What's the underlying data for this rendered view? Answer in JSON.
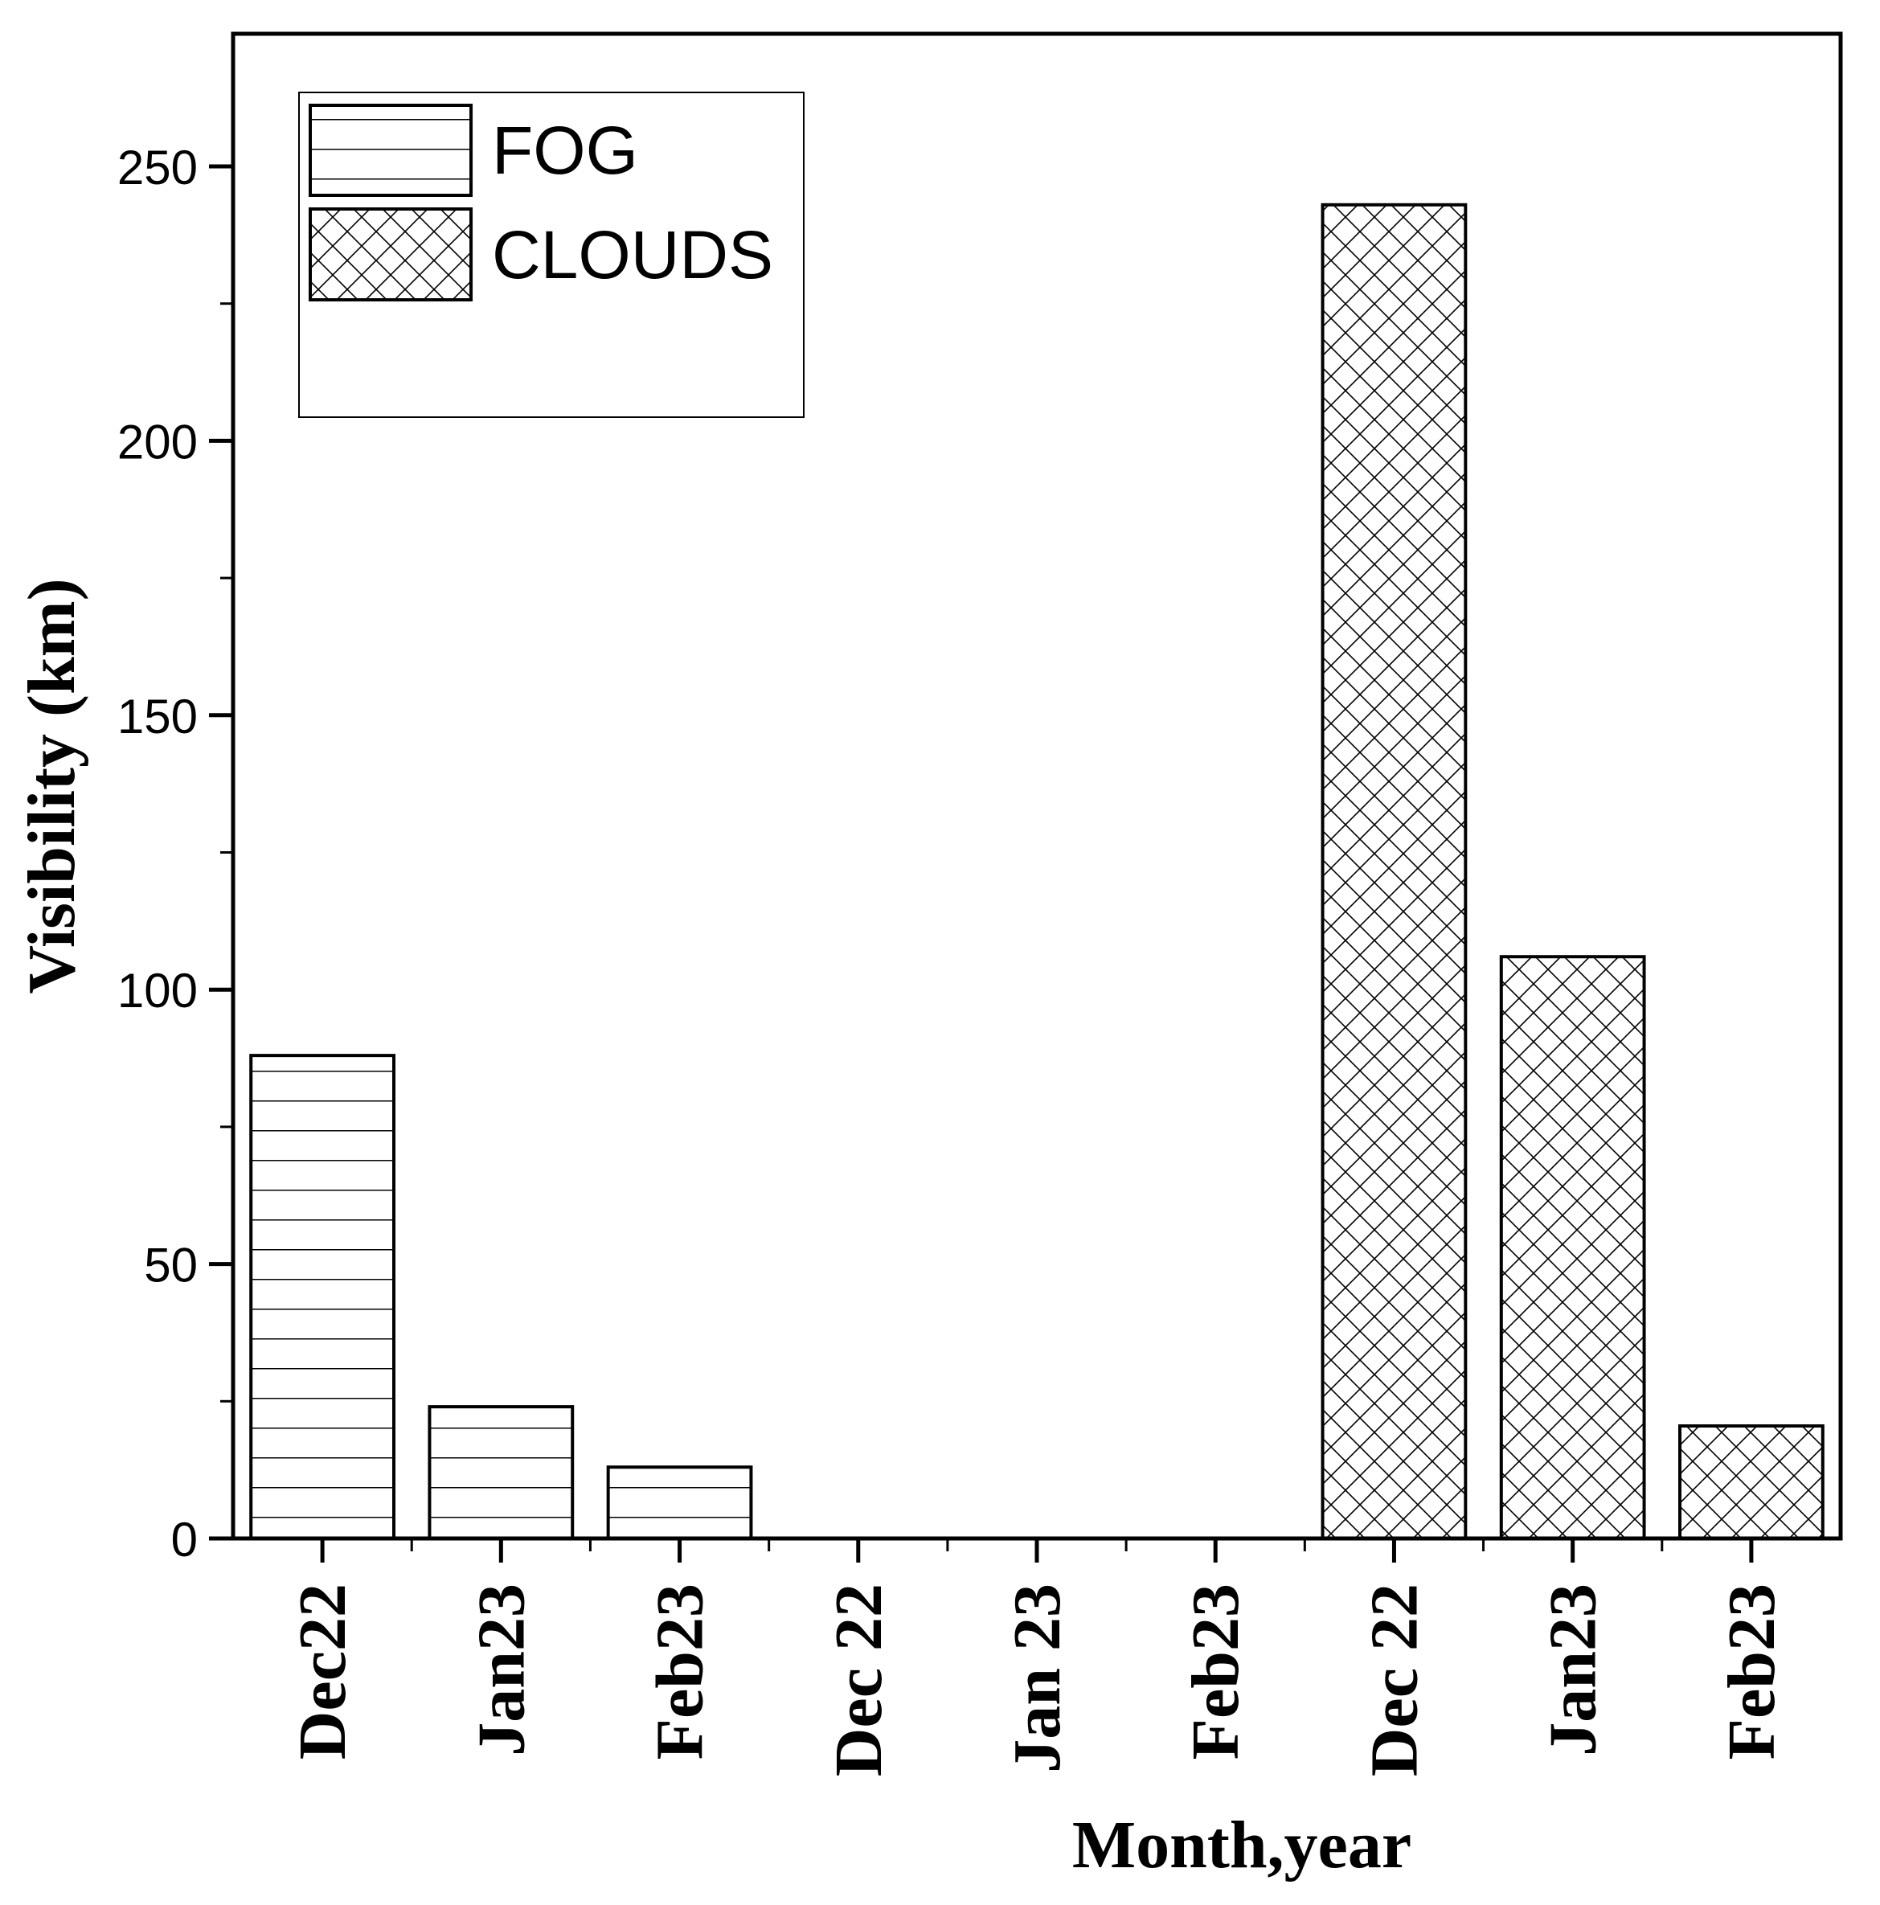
{
  "chart_data": {
    "type": "bar",
    "categories": [
      "Dec22",
      "Jan23",
      "Feb23",
      "Dec 22",
      "Jan 23",
      "Feb23",
      "Dec 22",
      "Jan23",
      "Feb23"
    ],
    "series": [
      {
        "name": "FOG",
        "pattern": "horizontal-lines",
        "values": [
          88,
          24,
          13,
          null,
          null,
          null,
          null,
          null,
          null
        ]
      },
      {
        "name": "CLOUDS",
        "pattern": "crosshatch",
        "values": [
          null,
          null,
          null,
          null,
          null,
          null,
          243,
          106,
          20.5
        ]
      }
    ],
    "xlabel": "Month,year",
    "ylabel": "Visibility (km)",
    "ylim": [
      0,
      275
    ],
    "yticks": [
      0,
      50,
      100,
      150,
      200,
      250
    ],
    "ytick_labels": [
      "0",
      "50",
      "100",
      "150",
      "200",
      "250"
    ],
    "grid": false,
    "legend_position": "top-left",
    "colors": {
      "bar_fill": "#ffffff",
      "line": "#000000",
      "background": "#ffffff"
    }
  }
}
